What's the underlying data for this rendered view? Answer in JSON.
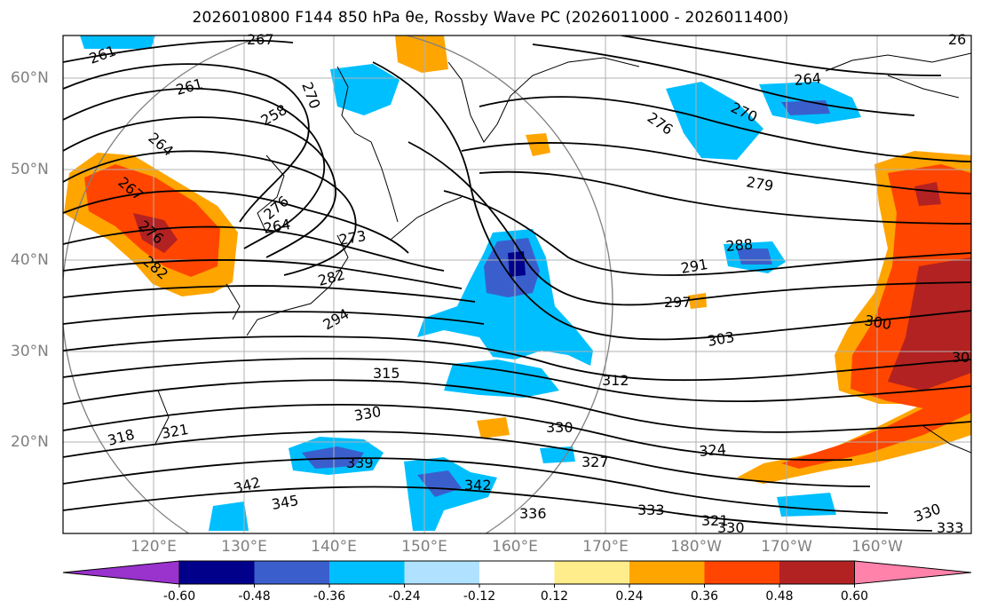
{
  "title": "2026010800 F144 850 hPa θe, Rossby Wave PC (2026011000 - 2026011400)",
  "map": {
    "lat_labels": [
      "60°N",
      "50°N",
      "40°N",
      "30°N",
      "20°N"
    ],
    "lon_labels": [
      "120°E",
      "130°E",
      "140°E",
      "150°E",
      "160°E",
      "170°E",
      "180°W",
      "170°W",
      "160°W"
    ],
    "contour_labels": [
      "267",
      "261",
      "261",
      "258",
      "270",
      "264",
      "267",
      "276",
      "282",
      "276",
      "264",
      "273",
      "282",
      "294",
      "264",
      "270",
      "276",
      "279",
      "288",
      "291",
      "297",
      "300",
      "303",
      "315",
      "312",
      "330",
      "330",
      "318",
      "321",
      "339",
      "342",
      "342",
      "345",
      "336",
      "327",
      "324",
      "333",
      "321",
      "330",
      "330",
      "333",
      "30",
      "26"
    ]
  },
  "colorbar": {
    "ticks": [
      "-0.60",
      "-0.48",
      "-0.36",
      "-0.24",
      "-0.12",
      "0.12",
      "0.24",
      "0.36",
      "0.48",
      "0.60"
    ],
    "colors": [
      "#9a32cd",
      "#00008b",
      "#3a5fcd",
      "#00bfff",
      "#b0e2ff",
      "#ffffff",
      "#ffec8b",
      "#ffa500",
      "#ff4500",
      "#b22222",
      "#ff82ab"
    ]
  }
}
